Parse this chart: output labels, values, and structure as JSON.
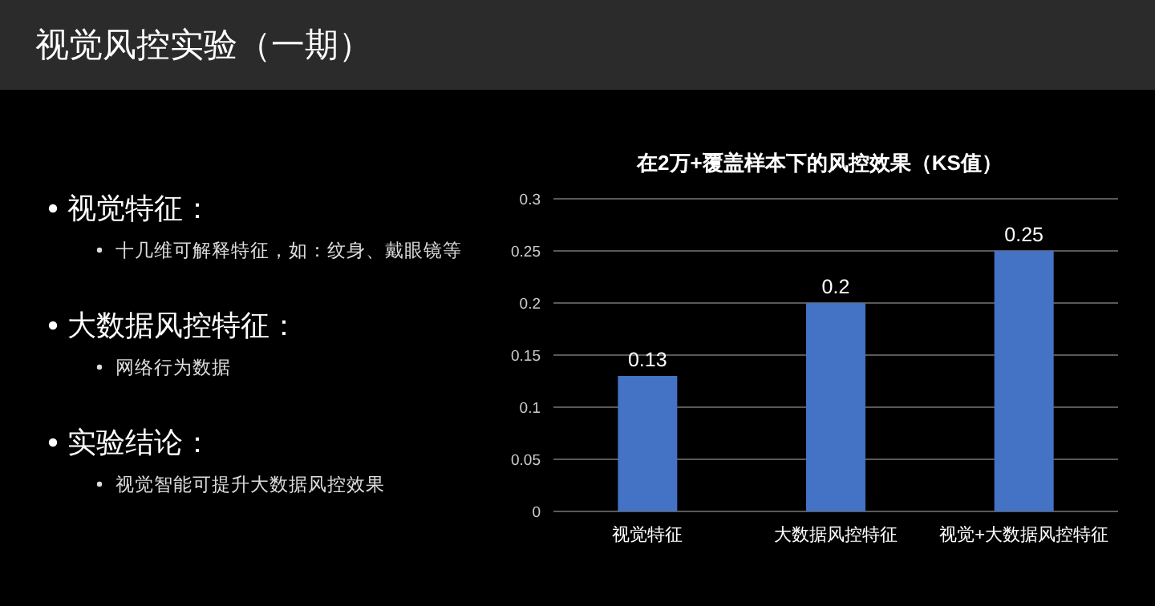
{
  "chart_data": [
    {
      "type": "other",
      "title": "视觉风控实验（一期）",
      "annotations": [
        "视觉特征：",
        "十几维可解释特征，如：纹身、戴眼镜等",
        "大数据风控特征：",
        "网络行为数据",
        "实验结论：",
        "视觉智能可提升大数据风控效果"
      ]
    },
    {
      "type": "bar",
      "title": "在2万+覆盖样本下的风控效果（KS值）",
      "categories": [
        "视觉特征",
        "大数据风控特征",
        "视觉+大数据风控特征"
      ],
      "values": [
        0.13,
        0.2,
        0.25
      ],
      "color": "#4472c4",
      "ylim": [
        0,
        0.3
      ],
      "yticks": [
        0,
        0.05,
        0.1,
        0.15,
        0.2,
        0.25,
        0.3
      ],
      "grid": "y",
      "data_labels": true
    }
  ]
}
